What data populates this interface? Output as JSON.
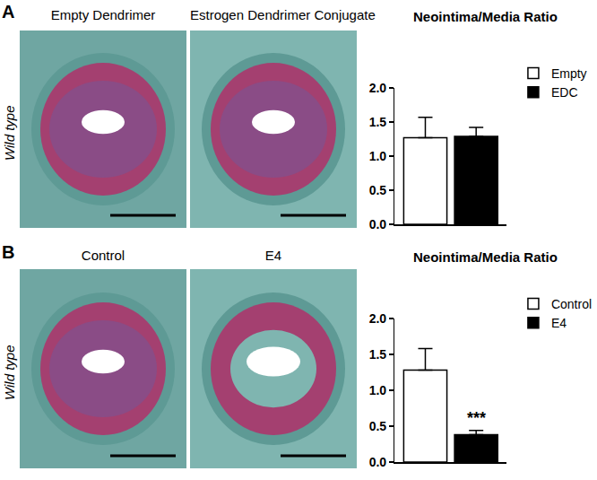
{
  "panels": [
    {
      "label": "A",
      "row_label": "Wild type",
      "image_titles": [
        "Empty Dendrimer",
        "Estrogen Dendrimer Conjugate"
      ]
    },
    {
      "label": "B",
      "row_label": "Wild type",
      "image_titles": [
        "Control",
        "E4"
      ]
    }
  ],
  "chart_data": [
    {
      "type": "bar",
      "title": "Neointima/Media Ratio",
      "categories": [
        "Empty",
        "EDC"
      ],
      "values": [
        1.27,
        1.29
      ],
      "errors": [
        0.3,
        0.13
      ],
      "colors": [
        "#ffffff",
        "#000000"
      ],
      "ylim": [
        0,
        2
      ],
      "yticks": [
        {
          "value": 0,
          "label": "0.0"
        },
        {
          "value": 0.5,
          "label": "0.5"
        },
        {
          "value": 1,
          "label": "1.0"
        },
        {
          "value": 1.5,
          "label": "1.5"
        },
        {
          "value": 2,
          "label": "2.0"
        }
      ],
      "legend": "top right",
      "tick_labels": "y"
    },
    {
      "type": "bar",
      "title": "Neointima/Media Ratio",
      "categories": [
        "Control",
        "E4"
      ],
      "values": [
        1.28,
        0.38
      ],
      "errors": [
        0.3,
        0.06
      ],
      "colors": [
        "#ffffff",
        "#000000"
      ],
      "ylim": [
        0,
        2
      ],
      "yticks": [
        {
          "value": 0,
          "label": "0.0"
        },
        {
          "value": 0.5,
          "label": "0.5"
        },
        {
          "value": 1,
          "label": "1.0"
        },
        {
          "value": 1.5,
          "label": "1.5"
        },
        {
          "value": 2,
          "label": "2.0"
        }
      ],
      "legend": "top right",
      "tick_labels": "y",
      "annotations": [
        {
          "text": "***",
          "category": "E4"
        }
      ]
    }
  ]
}
